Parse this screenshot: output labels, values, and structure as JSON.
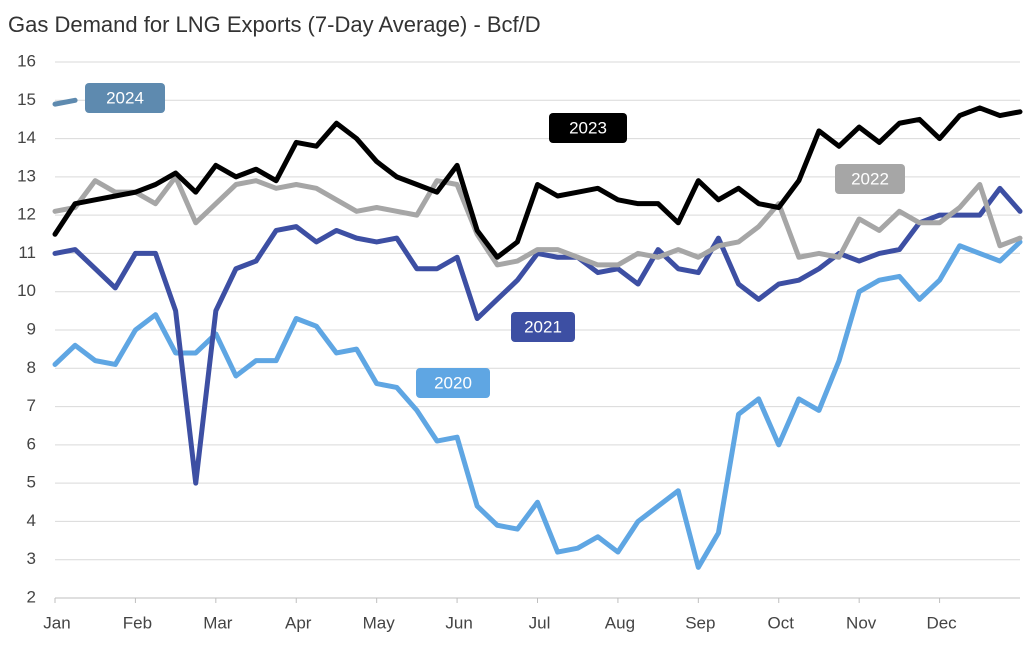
{
  "chart_data": {
    "type": "line",
    "title": "Gas Demand for LNG Exports (7-Day Average) - Bcf/D",
    "categories": [
      "Jan",
      null,
      null,
      null,
      "Feb",
      null,
      null,
      null,
      "Mar",
      null,
      null,
      null,
      "Apr",
      null,
      null,
      null,
      "May",
      null,
      null,
      null,
      "Jun",
      null,
      null,
      null,
      "Jul",
      null,
      null,
      null,
      "Aug",
      null,
      null,
      null,
      "Sep",
      null,
      null,
      null,
      "Oct",
      null,
      null,
      null,
      "Nov",
      null,
      null,
      null,
      "Dec",
      null,
      null,
      null,
      null
    ],
    "ylim": [
      2,
      16
    ],
    "yticks": [
      2,
      3,
      4,
      5,
      6,
      7,
      8,
      9,
      10,
      11,
      12,
      13,
      14,
      15,
      16
    ],
    "grid": true,
    "series": [
      {
        "name": "2020",
        "color": "#5fa6e3",
        "values": [
          8.1,
          8.6,
          8.2,
          8.1,
          9.0,
          9.4,
          8.4,
          8.4,
          8.9,
          7.8,
          8.2,
          8.2,
          9.3,
          9.1,
          8.4,
          8.5,
          7.6,
          7.5,
          6.9,
          6.1,
          6.2,
          4.4,
          3.9,
          3.8,
          4.5,
          3.2,
          3.3,
          3.6,
          3.2,
          4.0,
          4.4,
          4.8,
          2.8,
          3.7,
          6.8,
          7.2,
          6.0,
          7.2,
          6.9,
          8.2,
          10.0,
          10.3,
          10.4,
          9.8,
          10.3,
          11.2,
          11.0,
          10.8,
          11.3
        ]
      },
      {
        "name": "2021",
        "color": "#3d4fa3",
        "values": [
          11.0,
          11.1,
          10.6,
          10.1,
          11.0,
          11.0,
          9.5,
          5.0,
          9.5,
          10.6,
          10.8,
          11.6,
          11.7,
          11.3,
          11.6,
          11.4,
          11.3,
          11.4,
          10.6,
          10.6,
          10.9,
          9.3,
          9.8,
          10.3,
          11.0,
          10.9,
          10.9,
          10.5,
          10.6,
          10.2,
          11.1,
          10.6,
          10.5,
          11.4,
          10.2,
          9.8,
          10.2,
          10.3,
          10.6,
          11.0,
          10.8,
          11.0,
          11.1,
          11.8,
          12.0,
          12.0,
          12.0,
          12.7,
          12.1
        ]
      },
      {
        "name": "2022",
        "color": "#a6a6a6",
        "values": [
          12.1,
          12.2,
          12.9,
          12.6,
          12.6,
          12.3,
          13.0,
          11.8,
          12.3,
          12.8,
          12.9,
          12.7,
          12.8,
          12.7,
          12.4,
          12.1,
          12.2,
          12.1,
          12.0,
          12.9,
          12.8,
          11.5,
          10.7,
          10.8,
          11.1,
          11.1,
          10.9,
          10.7,
          10.7,
          11.0,
          10.9,
          11.1,
          10.9,
          11.2,
          11.3,
          11.7,
          12.3,
          10.9,
          11.0,
          10.9,
          11.9,
          11.6,
          12.1,
          11.8,
          11.8,
          12.2,
          12.8,
          11.2,
          11.4
        ]
      },
      {
        "name": "2023",
        "color": "#000000",
        "values": [
          11.5,
          12.3,
          12.4,
          12.5,
          12.6,
          12.8,
          13.1,
          12.6,
          13.3,
          13.0,
          13.2,
          12.9,
          13.9,
          13.8,
          14.4,
          14.0,
          13.4,
          13.0,
          12.8,
          12.6,
          13.3,
          11.6,
          10.9,
          11.3,
          12.8,
          12.5,
          12.6,
          12.7,
          12.4,
          12.3,
          12.3,
          11.8,
          12.9,
          12.4,
          12.7,
          12.3,
          12.2,
          12.9,
          14.2,
          13.8,
          14.3,
          13.9,
          14.4,
          14.5,
          14.0,
          14.6,
          14.8,
          14.6,
          14.7
        ]
      },
      {
        "name": "2024",
        "color": "#5e8aaf",
        "values": [
          14.9,
          15.0,
          null,
          null,
          null,
          null,
          null,
          null,
          null,
          null,
          null,
          null,
          null,
          null,
          null,
          null,
          null,
          null,
          null,
          null,
          null,
          null,
          null,
          null,
          null,
          null,
          null,
          null,
          null,
          null,
          null,
          null,
          null,
          null,
          null,
          null,
          null,
          null,
          null,
          null,
          null,
          null,
          null,
          null,
          null,
          null,
          null,
          null,
          null
        ]
      }
    ]
  }
}
